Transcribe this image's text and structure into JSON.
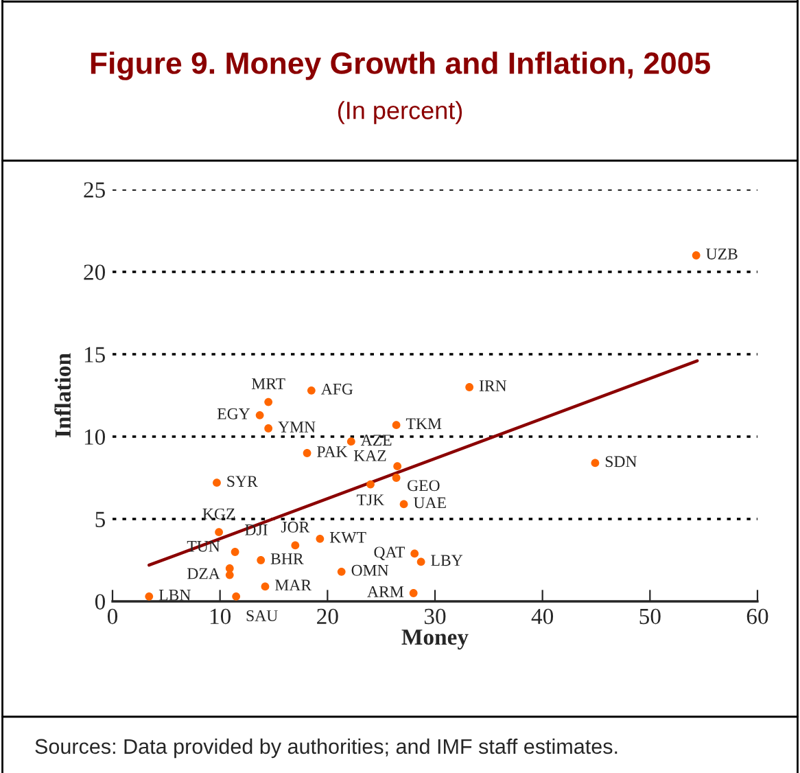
{
  "chart_data": {
    "type": "scatter",
    "title": "Figure 9. Money Growth and Inflation, 2005",
    "subtitle": "(In percent)",
    "xlabel": "Money",
    "ylabel": "Inflation",
    "xlim": [
      0,
      60
    ],
    "xticks": [
      0,
      10,
      20,
      30,
      40,
      50,
      60
    ],
    "ylim": [
      0,
      25
    ],
    "yticks": [
      0,
      5,
      10,
      15,
      20,
      25
    ],
    "grid": "y",
    "legend": false,
    "series": [
      {
        "color": "#ff6600",
        "marker": "circle",
        "x": [
          3.4,
          11.5,
          14.2,
          10.9,
          10.9,
          11.4,
          13.8,
          9.9,
          17.0,
          19.3,
          21.3,
          9.7,
          18.1,
          22.2,
          14.5,
          13.7,
          14.5,
          18.5,
          33.2,
          26.4,
          26.5,
          26.4,
          24.0,
          27.1,
          28.1,
          28.7,
          28.0,
          44.9,
          54.3
        ],
        "values": [
          0.3,
          0.3,
          0.9,
          1.6,
          2.0,
          3.0,
          2.5,
          4.2,
          3.4,
          3.8,
          1.8,
          7.2,
          9.0,
          9.7,
          10.5,
          11.3,
          12.1,
          12.8,
          13.0,
          10.7,
          8.2,
          7.5,
          7.1,
          5.9,
          2.9,
          2.4,
          0.5,
          8.4,
          21.0
        ]
      },
      {
        "type": "line",
        "color": "#8b0000",
        "line_style": "solid",
        "x": [
          3.4,
          54.4
        ],
        "values": [
          2.2,
          14.6
        ]
      }
    ],
    "annotations": [
      {
        "text": "LBN",
        "x": 3.4,
        "y": 0.3
      },
      {
        "text": "SAU",
        "x": 11.5,
        "y": 0.3
      },
      {
        "text": "MAR",
        "x": 14.2,
        "y": 0.9
      },
      {
        "text": "DZA",
        "x": 10.9,
        "y": 1.6
      },
      {
        "text": "TUN",
        "x": 10.9,
        "y": 2.0
      },
      {
        "text": "DJI",
        "x": 11.4,
        "y": 3.0
      },
      {
        "text": "BHR",
        "x": 13.8,
        "y": 2.5
      },
      {
        "text": "KGZ",
        "x": 9.9,
        "y": 4.2
      },
      {
        "text": "JOR",
        "x": 17.0,
        "y": 3.4
      },
      {
        "text": "KWT",
        "x": 19.3,
        "y": 3.8
      },
      {
        "text": "OMN",
        "x": 21.3,
        "y": 1.8
      },
      {
        "text": "SYR",
        "x": 9.7,
        "y": 7.2
      },
      {
        "text": "PAK",
        "x": 18.1,
        "y": 9.0
      },
      {
        "text": "AZE",
        "x": 22.2,
        "y": 9.7
      },
      {
        "text": "YMN",
        "x": 14.5,
        "y": 10.5
      },
      {
        "text": "EGY",
        "x": 13.7,
        "y": 11.3
      },
      {
        "text": "MRT",
        "x": 14.5,
        "y": 12.1
      },
      {
        "text": "AFG",
        "x": 18.5,
        "y": 12.8
      },
      {
        "text": "IRN",
        "x": 33.2,
        "y": 13.0
      },
      {
        "text": "TKM",
        "x": 26.4,
        "y": 10.7
      },
      {
        "text": "GEO",
        "x": 26.5,
        "y": 8.2
      },
      {
        "text": "KAZ",
        "x": 26.4,
        "y": 7.5
      },
      {
        "text": "TJK",
        "x": 24.0,
        "y": 7.1
      },
      {
        "text": "UAE",
        "x": 27.1,
        "y": 5.9
      },
      {
        "text": "QAT",
        "x": 28.1,
        "y": 2.9
      },
      {
        "text": "LBY",
        "x": 28.7,
        "y": 2.4
      },
      {
        "text": "ARM",
        "x": 28.0,
        "y": 0.5
      },
      {
        "text": "SDN",
        "x": 44.9,
        "y": 8.4
      },
      {
        "text": "UZB",
        "x": 54.3,
        "y": 21.0
      },
      "Sources: Data provided by authorities; and IMF staff estimates."
    ]
  }
}
